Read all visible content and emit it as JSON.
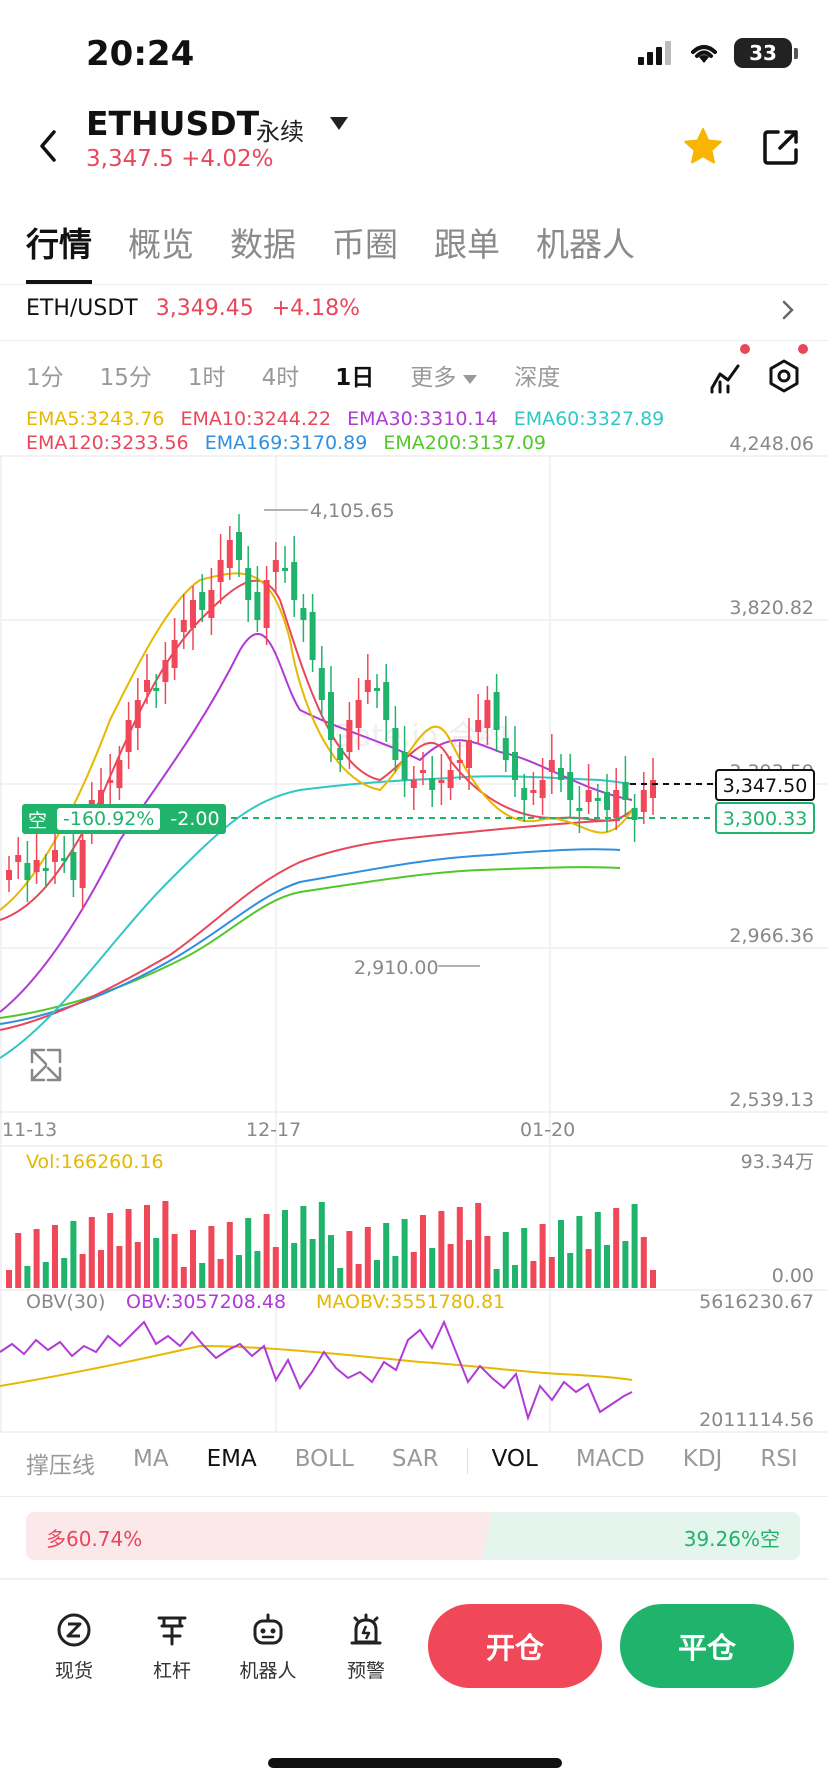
{
  "status_bar": {
    "time": "20:24",
    "battery": "33"
  },
  "header": {
    "symbol": "ETHUSDT",
    "contract_type": "永续",
    "price_change": "3,347.5 +4.02%",
    "icons": [
      "back-icon",
      "star-icon",
      "share-icon"
    ],
    "accent_star_color": "#f7b500"
  },
  "tabs": [
    "行情",
    "概览",
    "数据",
    "币圈",
    "跟单",
    "机器人"
  ],
  "pair": {
    "name": "ETH/USDT",
    "price": "3,349.45",
    "change": "+4.18%"
  },
  "intervals": [
    "1分",
    "15分",
    "1时",
    "4时",
    "1日",
    "更多",
    "深度"
  ],
  "active_interval": "1日",
  "ema_row1": [
    {
      "text": "EMA5:3243.76",
      "color": "#e6b800"
    },
    {
      "text": "EMA10:3244.22",
      "color": "#e8475a"
    },
    {
      "text": "EMA30:3310.14",
      "color": "#b03ad6"
    },
    {
      "text": "EMA60:3327.89",
      "color": "#2fc7c4"
    }
  ],
  "ema_row2": [
    {
      "text": "EMA120:3233.56",
      "color": "#e8475a"
    },
    {
      "text": "EMA169:3170.89",
      "color": "#2f8fe0"
    },
    {
      "text": "EMA200:3137.09",
      "color": "#52c72a"
    }
  ],
  "price_axis": [
    "4,248.06",
    "3,820.82",
    "3,393.59",
    "2,966.36",
    "2,539.13"
  ],
  "current_price_box": "3,347.50",
  "position_price_box": "3,300.33",
  "position_tag": {
    "side": "空",
    "pnl": "-160.92%",
    "qty": "-2.00"
  },
  "high_label": "4,105.65",
  "low_label": "2,910.00",
  "date_axis": [
    "11-13",
    "12-17",
    "01-20"
  ],
  "volume": {
    "label": "Vol:166260.16",
    "max": "93.34万",
    "min": "0.00"
  },
  "obv": {
    "label": "OBV(30)",
    "obv": "OBV:3057208.48",
    "maobv": "MAOBV:3551780.81",
    "max": "5616230.67",
    "min": "2011114.56"
  },
  "indicator_tabs": [
    "撑压线",
    "MA",
    "EMA",
    "BOLL",
    "SAR",
    "VOL",
    "MACD",
    "KDJ",
    "RSI"
  ],
  "active_indicators": [
    "EMA",
    "VOL"
  ],
  "long_short": {
    "long": "多60.74%",
    "short": "39.26%空",
    "long_ratio": 0.6074
  },
  "bottom_nav": [
    {
      "label": "现货",
      "icon": "spot-icon"
    },
    {
      "label": "杠杆",
      "icon": "leverage-icon"
    },
    {
      "label": "机器人",
      "icon": "robot-icon"
    },
    {
      "label": "预警",
      "icon": "alert-icon"
    }
  ],
  "buttons": {
    "open": "开仓",
    "close": "平仓"
  },
  "colors": {
    "up": "#f04759",
    "down": "#20b36b"
  },
  "chart_data": {
    "type": "candlestick",
    "xlabels": [
      "11-13",
      "12-17",
      "01-20"
    ],
    "ylim": [
      2539.13,
      4248.06
    ],
    "high": 4105.65,
    "low": 2910.0,
    "last": 3347.5
  }
}
